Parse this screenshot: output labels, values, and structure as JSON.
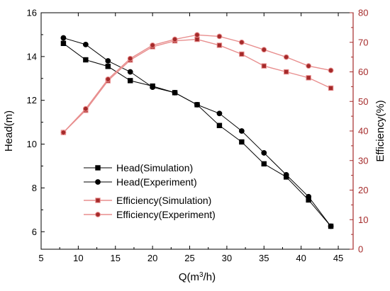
{
  "chart_data": {
    "type": "line",
    "xlabel_parts": [
      "Q(m",
      "3",
      "/h)"
    ],
    "ylabel_left": "Head(m)",
    "ylabel_right": "Efficiency(%)",
    "xlim": [
      5,
      47
    ],
    "ylim_left": [
      5.2,
      16
    ],
    "ylim_right": [
      0,
      80
    ],
    "x_ticks": [
      5,
      10,
      15,
      20,
      25,
      30,
      35,
      40,
      45
    ],
    "y_left_ticks": [
      6,
      8,
      10,
      12,
      14,
      16
    ],
    "y_right_ticks": [
      0,
      10,
      20,
      30,
      40,
      50,
      60,
      70,
      80
    ],
    "grid": false,
    "legend_position": "center-left",
    "colors": {
      "head": "#000000",
      "efficiency": "#a52a2a",
      "efficiency_line": "#e88e8e"
    },
    "series": [
      {
        "name": "Head(Simulation)",
        "axis": "left",
        "marker": "square",
        "x": [
          8,
          11,
          14,
          17,
          20,
          23,
          26,
          29,
          32,
          35,
          38,
          41,
          44
        ],
        "values": [
          14.6,
          13.85,
          13.55,
          12.9,
          12.65,
          12.35,
          11.8,
          10.85,
          10.1,
          9.1,
          8.5,
          7.45,
          6.25
        ]
      },
      {
        "name": "Head(Experiment)",
        "axis": "left",
        "marker": "circle",
        "x": [
          8,
          11,
          14,
          17,
          20,
          23,
          26,
          29,
          32,
          35,
          38,
          41,
          44
        ],
        "values": [
          14.85,
          14.55,
          13.8,
          13.3,
          12.6,
          12.35,
          11.8,
          11.4,
          10.6,
          9.6,
          8.6,
          7.6,
          6.25
        ]
      },
      {
        "name": "Efficiency(Simulation)",
        "axis": "right",
        "marker": "square",
        "x": [
          8,
          11,
          14,
          17,
          20,
          23,
          26,
          29,
          32,
          35,
          38,
          41,
          44
        ],
        "values": [
          39.5,
          47,
          57,
          64,
          68.5,
          70.5,
          71,
          69,
          66,
          62,
          60,
          58,
          54.5
        ]
      },
      {
        "name": "Efficiency(Experiment)",
        "axis": "right",
        "marker": "circle",
        "x": [
          8,
          11,
          14,
          17,
          20,
          23,
          26,
          29,
          32,
          35,
          38,
          41,
          44
        ],
        "values": [
          39.5,
          47.5,
          57.5,
          64.5,
          69,
          71,
          72.5,
          72,
          70,
          67.5,
          65,
          62,
          60.5
        ]
      }
    ]
  }
}
